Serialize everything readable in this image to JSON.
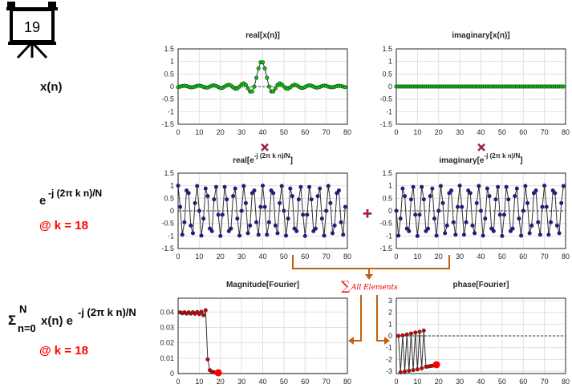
{
  "badge": {
    "number": "19",
    "icon": "presentation-board-icon"
  },
  "labels": {
    "signal": "x(n)",
    "kernel_base": "e",
    "kernel_exp": "-j (2π k n)/N",
    "kernel_k": "@ k = 18",
    "sum_sigma": "Σ",
    "sum_upper": "N",
    "sum_lower": "n=0",
    "sum_body": "x(n) e",
    "sum_exp": "-j (2π k n)/N",
    "sum_k": "@ k = 18"
  },
  "operators": {
    "multiply": "×",
    "add": "+",
    "sum_symbol": "∑",
    "sum_text": "All Elements"
  },
  "colors": {
    "green": "#00cc00",
    "blue": "#1a1aa6",
    "red": "#ff0000",
    "orange": "#c0600f",
    "line": "#333333",
    "grid": "#e0e0e0"
  },
  "chart_data": [
    {
      "id": "real-x",
      "type": "line",
      "title": "real[x(n)]",
      "xlim": [
        0,
        80
      ],
      "ylim": [
        -1.5,
        1.5
      ],
      "xticks": [
        0,
        10,
        20,
        30,
        40,
        50,
        60,
        70,
        80
      ],
      "yticks": [
        1.5,
        1,
        0.5,
        0,
        -0.5,
        -1,
        -1.5
      ],
      "marker_color": "#00cc00",
      "x_start": 0,
      "values": [
        -0.024,
        -0.003,
        0.021,
        0.03,
        0.016,
        -0.011,
        -0.032,
        -0.028,
        -0.003,
        0.027,
        0.037,
        0.019,
        -0.015,
        -0.04,
        -0.036,
        -0.003,
        0.035,
        0.049,
        0.025,
        -0.021,
        -0.055,
        -0.049,
        -0.003,
        0.051,
        0.07,
        0.036,
        -0.033,
        -0.086,
        -0.077,
        -0.003,
        0.089,
        0.129,
        0.067,
        -0.071,
        -0.196,
        -0.195,
        -0.003,
        0.346,
        0.723,
        0.967,
        0.967,
        0.723,
        0.346,
        -0.003,
        -0.195,
        -0.196,
        -0.071,
        0.067,
        0.129,
        0.089,
        -0.003,
        -0.077,
        -0.086,
        -0.033,
        0.036,
        0.07,
        0.051,
        -0.003,
        -0.049,
        -0.055,
        -0.021,
        0.025,
        0.049,
        0.035,
        -0.003,
        -0.036,
        -0.04,
        -0.015,
        0.019,
        0.037,
        0.027,
        -0.003,
        -0.028,
        -0.032,
        -0.011,
        0.016,
        0.03,
        0.021,
        -0.003,
        -0.024
      ]
    },
    {
      "id": "imag-x",
      "type": "line",
      "title": "imaginary[x(n)]",
      "xlim": [
        0,
        80
      ],
      "ylim": [
        -1.5,
        1.5
      ],
      "xticks": [
        0,
        10,
        20,
        30,
        40,
        50,
        60,
        70,
        80
      ],
      "yticks": [
        1.5,
        1,
        0.5,
        0,
        -0.5,
        -1,
        -1.5
      ],
      "marker_color": "#00cc00",
      "x_start": 0,
      "constant": 0,
      "count": 80
    },
    {
      "id": "real-kernel",
      "type": "line",
      "title": "real[e",
      "title_exp": "-j (2π k n)/N",
      "title_close": "]",
      "xlim": [
        0,
        80
      ],
      "ylim": [
        -1.5,
        1.5
      ],
      "xticks": [
        0,
        10,
        20,
        30,
        40,
        50,
        60,
        70,
        80
      ],
      "yticks": [
        1.5,
        1,
        0.5,
        0,
        -0.5,
        -1,
        -1.5
      ],
      "marker_color": "#1a1aa6",
      "func": "cos",
      "k": 18,
      "N": 80
    },
    {
      "id": "imag-kernel",
      "type": "line",
      "title": "imaginary[e",
      "title_exp": "-j (2π k n)/N",
      "title_close": "]",
      "xlim": [
        0,
        80
      ],
      "ylim": [
        -1.5,
        1.5
      ],
      "xticks": [
        0,
        10,
        20,
        30,
        40,
        50,
        60,
        70,
        80
      ],
      "yticks": [
        1.5,
        1,
        0.5,
        0,
        -0.5,
        -1,
        -1.5
      ],
      "marker_color": "#1a1aa6",
      "func": "-sin",
      "k": 18,
      "N": 80
    },
    {
      "id": "magnitude",
      "type": "line",
      "title": "Magnitude[Fourier]",
      "xlim": [
        0,
        80
      ],
      "ylim": [
        0,
        0.049
      ],
      "xticks": [
        0,
        10,
        20,
        30,
        40,
        50,
        60,
        70,
        80
      ],
      "yticks": [
        0.04,
        0.03,
        0.02,
        0.01,
        0
      ],
      "marker_color": "#dd0000",
      "x_start": 1,
      "values": [
        0.0398,
        0.0392,
        0.0398,
        0.039,
        0.0398,
        0.039,
        0.0399,
        0.0389,
        0.04,
        0.0387,
        0.0402,
        0.038,
        0.0412,
        0.0092,
        0.0022,
        0.0012,
        0.0008,
        0.0006,
        0.0005
      ],
      "highlight_last": true
    },
    {
      "id": "phase",
      "type": "line",
      "title": "phase[Fourier]",
      "xlim": [
        0,
        80
      ],
      "ylim": [
        -3.2,
        3.2
      ],
      "xticks": [
        0,
        10,
        20,
        30,
        40,
        50,
        60,
        70,
        80
      ],
      "yticks": [
        3,
        2,
        1,
        0,
        -1,
        -2,
        -3
      ],
      "marker_color": "#dd0000",
      "x_start": 1,
      "values": [
        0.0,
        -3.1,
        0.05,
        -3.02,
        0.12,
        -2.96,
        0.2,
        -2.9,
        0.28,
        -2.84,
        0.35,
        -2.76,
        0.45,
        -2.62,
        -2.6,
        -2.57,
        -2.54,
        -2.5,
        -2.45
      ],
      "highlight_last": true
    }
  ]
}
